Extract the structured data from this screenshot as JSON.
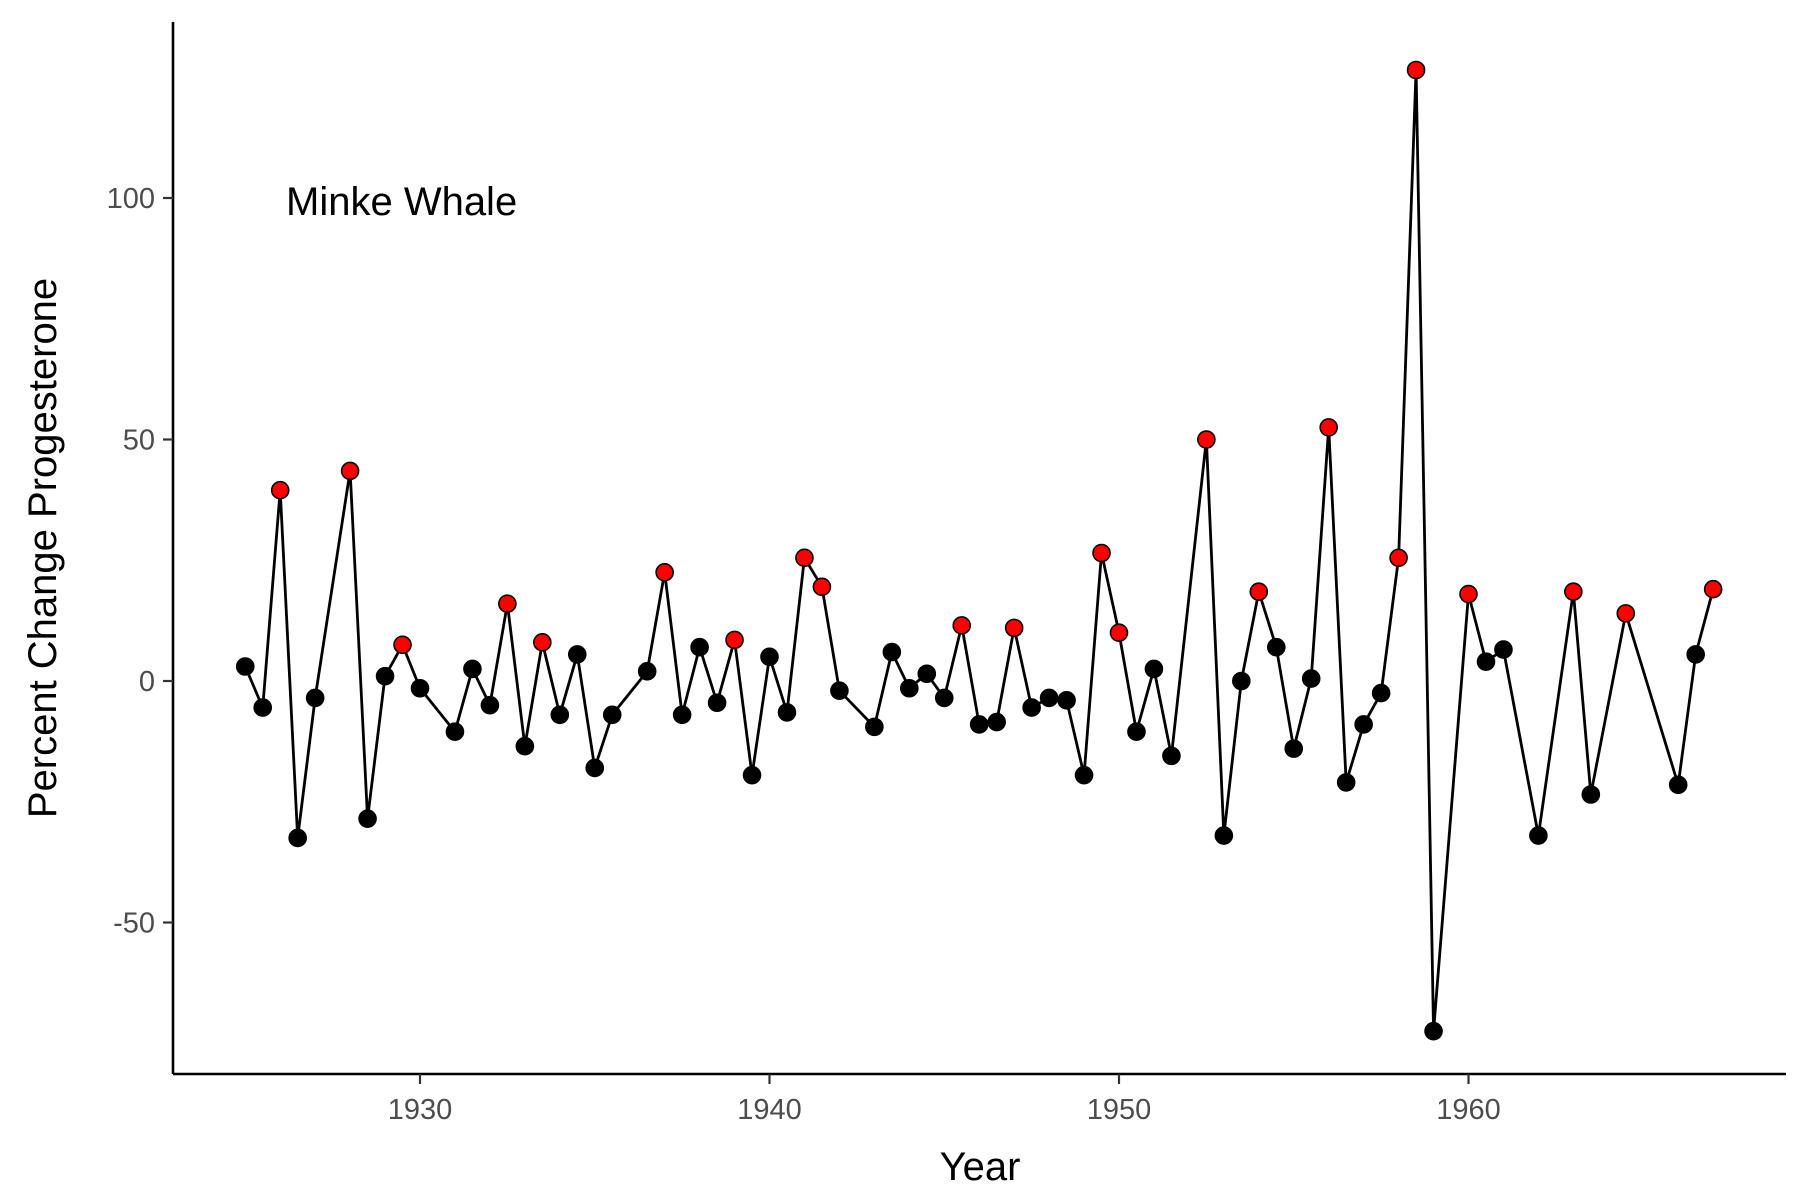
{
  "chart_data": {
    "type": "line",
    "annotation": "Minke Whale",
    "xlabel": "Year",
    "ylabel": "Percent Change Progesterone",
    "xlim": [
      1923,
      1969
    ],
    "ylim": [
      -82,
      133
    ],
    "x_ticks": [
      1930,
      1940,
      1950,
      1960
    ],
    "y_ticks": [
      -50,
      0,
      50,
      100
    ],
    "grid": false,
    "colors": {
      "line": "#000000",
      "point_default": "#000000",
      "point_highlight": "#ff0000",
      "point_stroke": "#000000"
    },
    "series": [
      {
        "x": [
          1925,
          1925.5,
          1926,
          1926.5,
          1927,
          1928,
          1928.5,
          1929,
          1929.5,
          1930,
          1931,
          1931.5,
          1932,
          1932.5,
          1933,
          1933.5,
          1934,
          1934.5,
          1935,
          1935.5,
          1936.5,
          1937,
          1937.5,
          1938,
          1938.5,
          1939,
          1939.5,
          1940,
          1940.5,
          1941,
          1941.5,
          1942,
          1943,
          1943.5,
          1944,
          1944.5,
          1945,
          1945.5,
          1946,
          1946.5,
          1947,
          1947.5,
          1948,
          1948.5,
          1949,
          1949.5,
          1950,
          1950.5,
          1951,
          1951.5,
          1952.5,
          1953,
          1953.5,
          1954,
          1954.5,
          1955,
          1955.5,
          1956,
          1956.5,
          1957,
          1957.5,
          1958,
          1958.5,
          1959,
          1960,
          1960.5,
          1961,
          1962,
          1963,
          1963.5,
          1964.5,
          1966,
          1966.5,
          1967
        ],
        "y": [
          3,
          -5.5,
          39.5,
          -32.5,
          -3.5,
          43.5,
          -28.5,
          1,
          7.5,
          -1.5,
          -10.5,
          2.5,
          -5,
          16,
          -13.5,
          8,
          -7,
          5.5,
          -18,
          -7,
          2,
          22.5,
          -7,
          7,
          -4.5,
          8.5,
          -19.5,
          5,
          -6.5,
          25.5,
          19.5,
          -2,
          -9.5,
          6,
          -1.5,
          1.5,
          -3.5,
          11.5,
          -9,
          -8.5,
          11,
          -5.5,
          -3.5,
          -4,
          -19.5,
          26.5,
          10,
          -10.5,
          2.5,
          -15.5,
          50,
          -32,
          0,
          18.5,
          7,
          -14,
          0.5,
          52.5,
          -21,
          -9,
          -2.5,
          25.5,
          126.5,
          -72.5,
          18,
          4,
          6.5,
          -32,
          18.5,
          -23.5,
          14,
          -21.5,
          5.5,
          19
        ],
        "highlight": [
          false,
          false,
          true,
          false,
          false,
          true,
          false,
          false,
          true,
          false,
          false,
          false,
          false,
          true,
          false,
          true,
          false,
          false,
          false,
          false,
          false,
          true,
          false,
          false,
          false,
          true,
          false,
          false,
          false,
          true,
          true,
          false,
          false,
          false,
          false,
          false,
          false,
          true,
          false,
          false,
          true,
          false,
          false,
          false,
          false,
          true,
          true,
          false,
          false,
          false,
          true,
          false,
          false,
          true,
          false,
          false,
          false,
          true,
          false,
          false,
          false,
          true,
          true,
          false,
          true,
          false,
          false,
          false,
          true,
          false,
          true,
          false,
          false,
          true
        ]
      }
    ]
  }
}
